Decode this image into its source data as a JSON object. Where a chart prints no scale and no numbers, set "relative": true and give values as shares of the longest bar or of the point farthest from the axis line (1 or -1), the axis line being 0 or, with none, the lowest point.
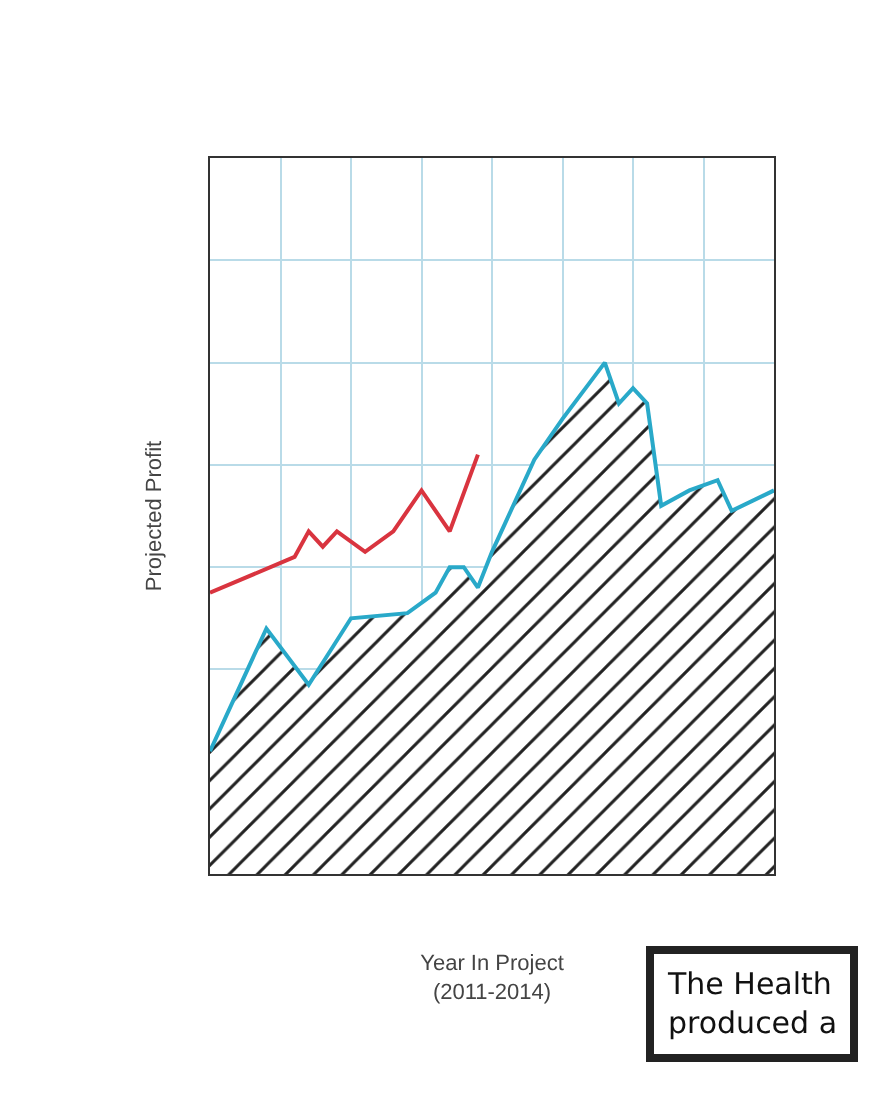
{
  "chart_data": {
    "type": "line",
    "relative": true,
    "ylabel": "Projected Profit",
    "xlabel": "Year In Project\n(2011-2014)",
    "annotations": [
      "The Health\nproduced a"
    ],
    "categories": [
      null,
      null,
      null,
      null,
      null,
      null,
      null,
      null,
      null,
      null,
      null,
      null,
      null,
      null,
      null,
      null,
      null,
      null,
      null,
      null,
      null,
      null,
      null,
      null,
      null,
      null,
      null,
      null,
      null,
      null,
      null,
      null,
      null,
      null,
      null,
      null,
      null,
      null,
      null,
      null,
      null
    ],
    "series": [
      {
        "type": "area",
        "color": "#29a9c9",
        "values": [
          0.24,
          null,
          null,
          null,
          0.48,
          null,
          null,
          0.37,
          null,
          null,
          0.5,
          null,
          null,
          null,
          0.51,
          null,
          0.55,
          0.6,
          0.6,
          0.56,
          0.63,
          null,
          null,
          0.81,
          null,
          0.89,
          null,
          null,
          1,
          0.92,
          0.95,
          0.92,
          0.72,
          null,
          0.75,
          null,
          0.77,
          0.71,
          null,
          null,
          0.75
        ]
      },
      {
        "color": "#d9343f",
        "values": [
          0.55,
          null,
          null,
          null,
          null,
          null,
          0.62,
          0.67,
          0.64,
          0.67,
          null,
          0.63,
          null,
          0.67,
          null,
          0.75,
          null,
          0.67,
          null,
          0.82,
          null,
          null,
          null,
          null,
          null,
          null,
          null,
          null,
          null,
          null,
          null,
          null,
          null,
          null,
          null,
          null,
          null,
          null,
          null,
          null,
          null
        ]
      }
    ],
    "grid": true,
    "marker": "none",
    "line_style": "solid"
  }
}
